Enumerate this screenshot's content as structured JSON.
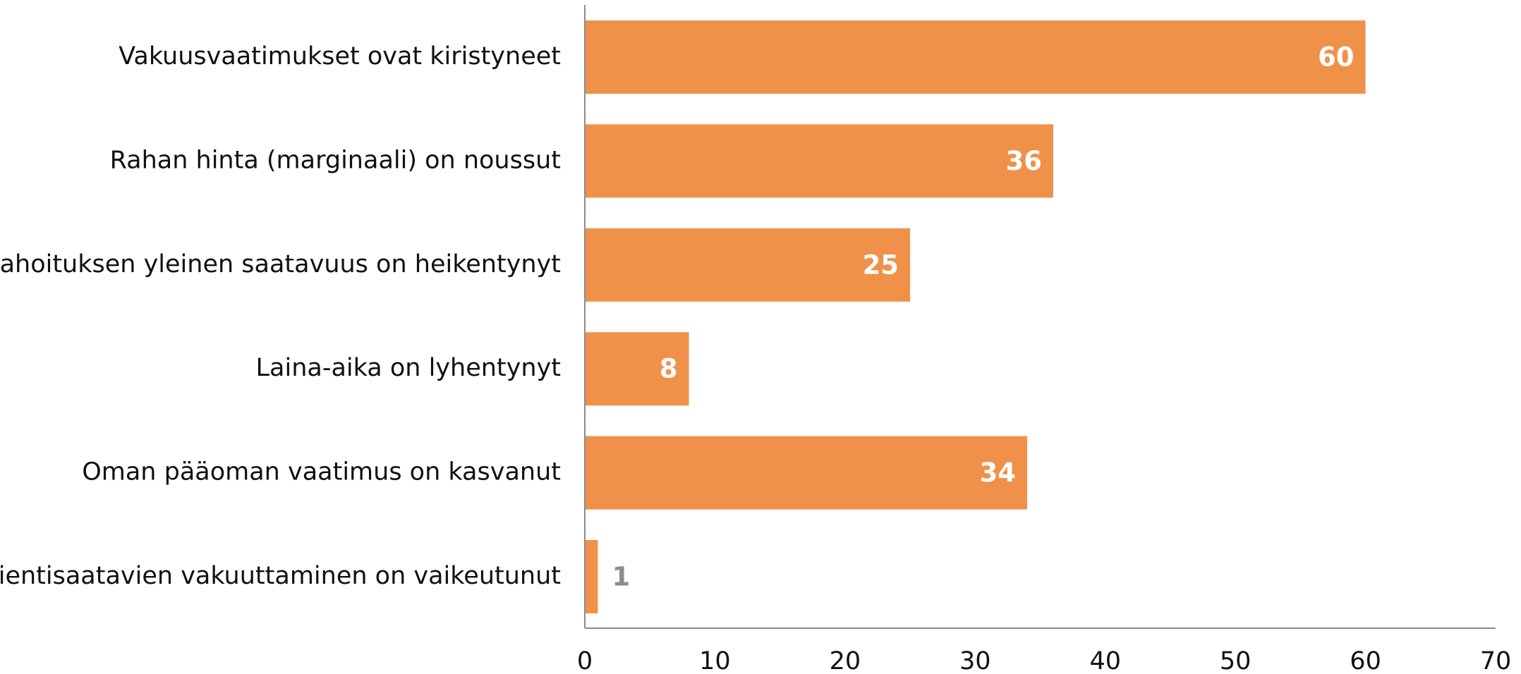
{
  "chart_data": {
    "type": "barh",
    "categories": [
      "Vakuusvaatimukset ovat kiristyneet",
      "Rahan hinta (marginaali) on noussut",
      "Rahoituksen yleinen saatavuus on heikentynyt",
      "Laina-aika on lyhentynyt",
      "Oman pääoman vaatimus on kasvanut",
      "Vientisaatavien vakuuttaminen on vaikeutunut"
    ],
    "values": [
      60,
      36,
      25,
      8,
      34,
      1
    ],
    "color": "#f0914a",
    "xlim": [
      0,
      70
    ],
    "xticks": [
      0,
      10,
      20,
      30,
      40,
      50,
      60,
      70
    ],
    "grid": false
  }
}
